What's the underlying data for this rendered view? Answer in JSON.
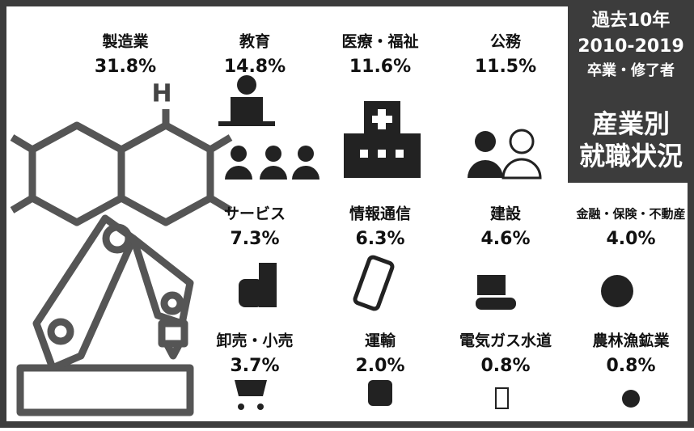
{
  "heading": {
    "lines": [
      "過去10年",
      "2010-2019",
      "卒業・修了者"
    ],
    "title": [
      "産業別",
      "就職状況"
    ]
  },
  "items": [
    {
      "label": "製造業",
      "value": "31.8%"
    },
    {
      "label": "教育",
      "value": "14.8%"
    },
    {
      "label": "医療・福祉",
      "value": "11.6%"
    },
    {
      "label": "公務",
      "value": "11.5%"
    },
    {
      "label": "サービス",
      "value": "7.3%"
    },
    {
      "label": "情報通信",
      "value": "6.3%"
    },
    {
      "label": "建設",
      "value": "4.6%"
    },
    {
      "label": "金融・保険・不動産",
      "value": "4.0%"
    },
    {
      "label": "卸売・小売",
      "value": "3.7%"
    },
    {
      "label": "運輸",
      "value": "2.0%"
    },
    {
      "label": "電気ガス水道",
      "value": "0.8%"
    },
    {
      "label": "農林漁鉱業",
      "value": "0.8%"
    }
  ]
}
